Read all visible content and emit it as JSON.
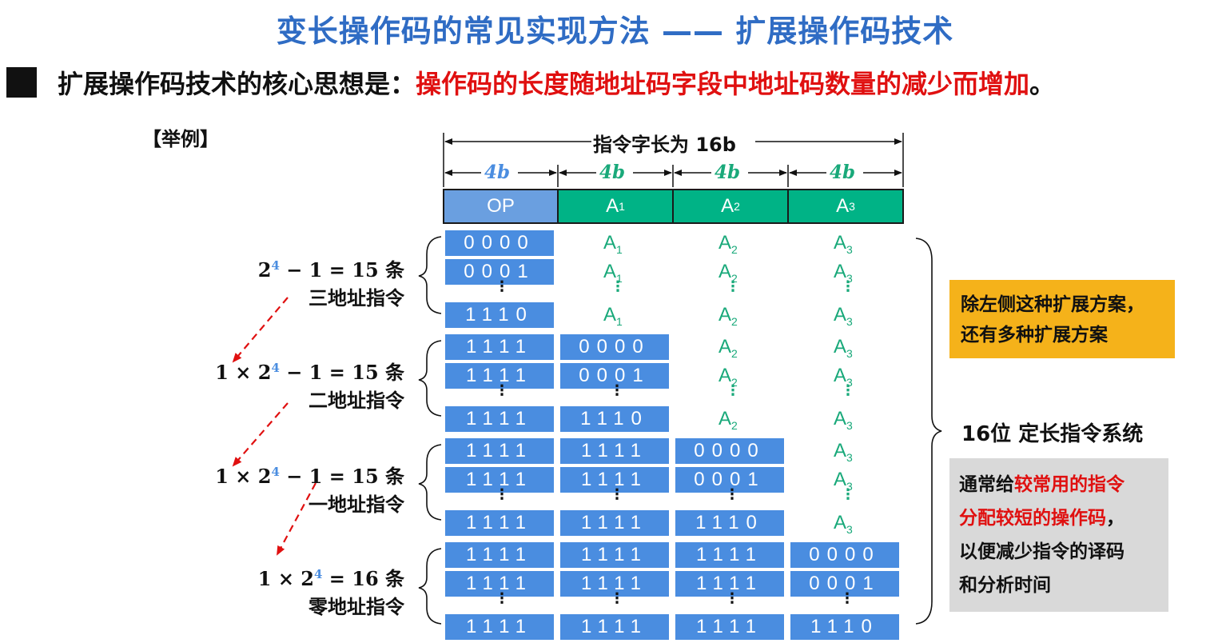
{
  "title": "变长操作码的常见实现方法 —— 扩展操作码技术",
  "core": {
    "prefix": "扩展操作码技术的核心思想是：",
    "highlight": "操作码的长度随地址码字段中地址码数量的减少而增加",
    "suffix": "。"
  },
  "example_label": "【举例】",
  "word_length_label": "指令字长为 16b",
  "field_width_label": "4b",
  "header_fields": [
    "OP",
    "A",
    "A",
    "A"
  ],
  "header_subs": [
    "",
    "1",
    "2",
    "3"
  ],
  "addr_symbol": "A",
  "addr_subs": [
    "1",
    "2",
    "3"
  ],
  "vdots": "⋮",
  "codes": [
    "0000",
    "0001",
    "1110",
    "1111"
  ],
  "groups": [
    {
      "count_text": "2",
      "exp": "4",
      "count_rest": " − 1 = 15 条",
      "name": "三地址指令"
    },
    {
      "count_text": "1 × 2",
      "exp": "4",
      "count_rest": " − 1 = 15 条",
      "name": "二地址指令"
    },
    {
      "count_text": "1 × 2",
      "exp": "4",
      "count_rest": " − 1 = 15 条",
      "name": "一地址指令"
    },
    {
      "count_text": "1 × 2",
      "exp": "4",
      "count_rest": " = 16 条",
      "name": "零地址指令"
    }
  ],
  "system_label": "16位 定长指令系统",
  "note_orange": [
    "除左侧这种扩展方案，",
    "还有多种扩展方案"
  ],
  "note_gray": {
    "line1_plain": "通常给",
    "line1_red": "较常用的指令",
    "line2_red": "分配较短的操作码",
    "line2_plain": "，",
    "line3": "以便减少指令的译码",
    "line4": "和分析时间"
  },
  "colors": {
    "title": "#2f6cc4",
    "op_header": "#6a9fe0",
    "addr_header": "#00b386",
    "cell": "#4a8de0",
    "addr_text": "#19a97a",
    "red": "#e01010",
    "orange_box": "#f5b21a",
    "gray_box": "#d9d9d9"
  }
}
